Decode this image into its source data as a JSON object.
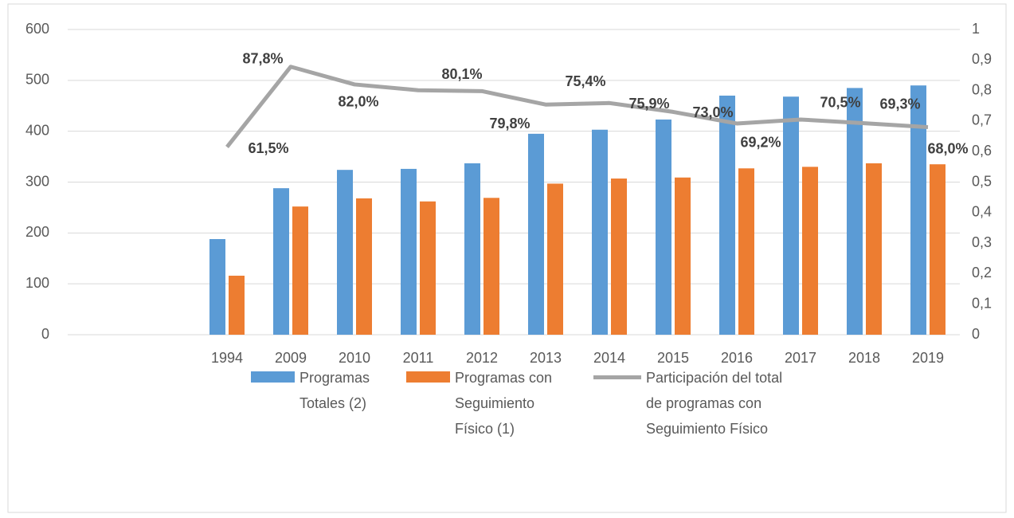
{
  "chart_data": {
    "type": "bar-line",
    "categories": [
      null,
      null,
      "1994",
      "2009",
      "2010",
      "2011",
      "2012",
      "2013",
      "2014",
      "2015",
      "2016",
      "2017",
      "2018",
      "2019"
    ],
    "series": [
      {
        "name": "Programas Totales (2)",
        "color": "#5b9bd5",
        "values": [
          null,
          null,
          188,
          288,
          324,
          326,
          337,
          395,
          403,
          423,
          470,
          468,
          485,
          490
        ]
      },
      {
        "name": "Programas con Seguimiento Físico (1)",
        "color": "#ed7d31",
        "values": [
          null,
          null,
          116,
          252,
          268,
          262,
          269,
          297,
          307,
          309,
          327,
          330,
          337,
          335
        ]
      },
      {
        "name": "Participación del total de programas con Seguimiento Físico",
        "color": "#a5a5a5",
        "axis": "y2",
        "type": "line",
        "values": [
          null,
          null,
          0.615,
          0.878,
          0.82,
          0.801,
          0.798,
          0.754,
          0.759,
          0.73,
          0.692,
          0.705,
          0.693,
          0.68
        ],
        "value_labels": [
          null,
          null,
          "61,5%",
          "87,8%",
          "82,0%",
          "80,1%",
          "79,8%",
          "75,4%",
          "75,9%",
          "73,0%",
          "69,2%",
          "70,5%",
          "69,3%",
          "68,0%"
        ]
      }
    ],
    "ylim": [
      0,
      600
    ],
    "yticks": [
      0,
      100,
      200,
      300,
      400,
      500,
      600
    ],
    "y2lim": [
      0,
      1
    ],
    "y2ticks": [
      0,
      {
        "value": 0.1,
        "label": "0,1"
      },
      {
        "value": 0.2,
        "label": "0,2"
      },
      {
        "value": 0.3,
        "label": "0,3"
      },
      {
        "value": 0.4,
        "label": "0,4"
      },
      {
        "value": 0.5,
        "label": "0,5"
      },
      {
        "value": 0.6,
        "label": "0,6"
      },
      {
        "value": 0.7,
        "label": "0,7"
      },
      {
        "value": 0.8,
        "label": "0,8"
      },
      {
        "value": 0.9,
        "label": "0,9"
      },
      1
    ],
    "grid": true
  }
}
